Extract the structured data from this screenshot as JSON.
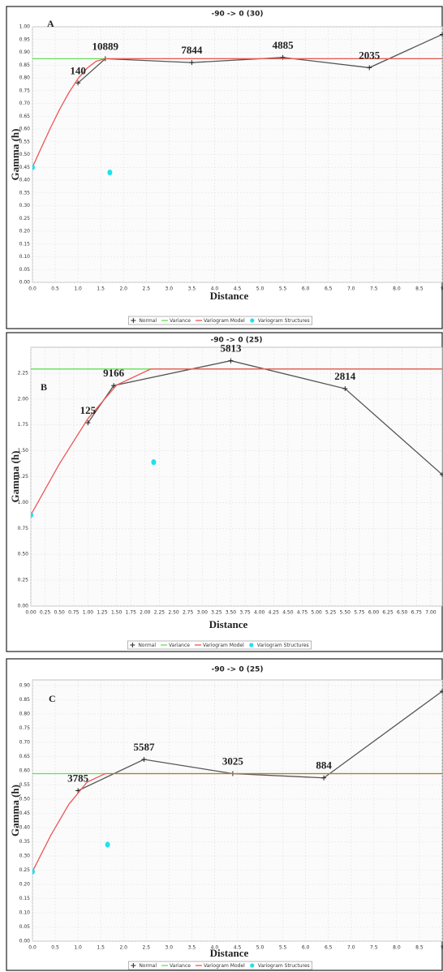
{
  "chart_data": [
    {
      "type": "line",
      "title": "-90 -> 0 (30)",
      "panel": "A",
      "xlabel": "Distance",
      "ylabel": "Gamma (h)",
      "grid": true,
      "xlim": [
        0,
        9
      ],
      "ylim": [
        0,
        1.0
      ],
      "xticks": [
        {
          "value": 0,
          "label": "0.0"
        },
        {
          "value": 0.5,
          "label": "0.5"
        },
        {
          "value": 1,
          "label": "1.0"
        },
        {
          "value": 1.5,
          "label": "1.5"
        },
        {
          "value": 2,
          "label": "2.0"
        },
        {
          "value": 2.5,
          "label": "2.5"
        },
        {
          "value": 3,
          "label": "3.0"
        },
        {
          "value": 3.5,
          "label": "3.5"
        },
        {
          "value": 4,
          "label": "4.0"
        },
        {
          "value": 4.5,
          "label": "4.5"
        },
        {
          "value": 5,
          "label": "5.0"
        },
        {
          "value": 5.5,
          "label": "5.5"
        },
        {
          "value": 6,
          "label": "6.0"
        },
        {
          "value": 6.5,
          "label": "6.5"
        },
        {
          "value": 7,
          "label": "7.0"
        },
        {
          "value": 7.5,
          "label": "7.5"
        },
        {
          "value": 8,
          "label": "8.0"
        },
        {
          "value": 8.5,
          "label": "8.5"
        },
        9
      ],
      "yticks": [
        {
          "value": 0,
          "label": "0.00"
        },
        {
          "value": 0.05,
          "label": "0.05"
        },
        {
          "value": 0.1,
          "label": "0.10"
        },
        {
          "value": 0.15,
          "label": "0.15"
        },
        {
          "value": 0.2,
          "label": "0.20"
        },
        {
          "value": 0.25,
          "label": "0.25"
        },
        {
          "value": 0.3,
          "label": "0.30"
        },
        {
          "value": 0.35,
          "label": "0.35"
        },
        {
          "value": 0.4,
          "label": "0.40"
        },
        {
          "value": 0.45,
          "label": "0.45"
        },
        {
          "value": 0.5,
          "label": "0.50"
        },
        {
          "value": 0.55,
          "label": "0.55"
        },
        {
          "value": 0.6,
          "label": "0.60"
        },
        {
          "value": 0.65,
          "label": "0.65"
        },
        {
          "value": 0.7,
          "label": "0.70"
        },
        {
          "value": 0.75,
          "label": "0.75"
        },
        {
          "value": 0.8,
          "label": "0.80"
        },
        {
          "value": 0.85,
          "label": "0.85"
        },
        {
          "value": 0.9,
          "label": "0.90"
        },
        {
          "value": 0.95,
          "label": "0.95"
        },
        {
          "value": 1.0,
          "label": "1.00"
        }
      ],
      "series": [
        {
          "name": "Normal",
          "color": "#555555",
          "marker": "+",
          "x": [
            1.0,
            1.6,
            3.5,
            5.5,
            7.4,
            9.0
          ],
          "values": [
            0.78,
            0.875,
            0.86,
            0.88,
            0.84,
            0.97
          ],
          "labels": [
            140,
            10889,
            7844,
            4885,
            2035,
            null
          ]
        },
        {
          "name": "Variance",
          "color": "#66dd55",
          "x": [
            0,
            9
          ],
          "values": [
            0.875,
            0.875
          ]
        },
        {
          "name": "Variogram Model",
          "color": "#ee5555",
          "x": [
            0,
            0.2,
            0.4,
            0.6,
            0.8,
            1.0,
            1.2,
            1.4,
            1.6,
            9
          ],
          "values": [
            0.45,
            0.529,
            0.606,
            0.678,
            0.742,
            0.797,
            0.838,
            0.865,
            0.875,
            0.875
          ]
        },
        {
          "name": "Variogram Structures",
          "color": "#22e0ee",
          "marker": "dot",
          "x": [
            0,
            1.7
          ],
          "values": [
            0.45,
            0.43
          ]
        }
      ]
    },
    {
      "type": "line",
      "title": "-90 -> 0 (25)",
      "panel": "B",
      "xlabel": "Distance",
      "ylabel": "Gamma (h)",
      "grid": true,
      "xlim": [
        0,
        7.2
      ],
      "ylim": [
        0,
        2.5
      ],
      "xticks": [
        {
          "value": 0,
          "label": "0.00"
        },
        {
          "value": 0.25,
          "label": "0.25"
        },
        {
          "value": 0.5,
          "label": "0.50"
        },
        {
          "value": 0.75,
          "label": "0.75"
        },
        {
          "value": 1,
          "label": "1.00"
        },
        {
          "value": 1.25,
          "label": "1.25"
        },
        {
          "value": 1.5,
          "label": "1.50"
        },
        {
          "value": 1.75,
          "label": "1.75"
        },
        {
          "value": 2,
          "label": "2.00"
        },
        {
          "value": 2.25,
          "label": "2.25"
        },
        {
          "value": 2.5,
          "label": "2.50"
        },
        {
          "value": 2.75,
          "label": "2.75"
        },
        {
          "value": 3,
          "label": "3.00"
        },
        {
          "value": 3.25,
          "label": "3.25"
        },
        {
          "value": 3.5,
          "label": "3.50"
        },
        {
          "value": 3.75,
          "label": "3.75"
        },
        {
          "value": 4,
          "label": "4.00"
        },
        {
          "value": 4.25,
          "label": "4.25"
        },
        {
          "value": 4.5,
          "label": "4.50"
        },
        {
          "value": 4.75,
          "label": "4.75"
        },
        {
          "value": 5,
          "label": "5.00"
        },
        {
          "value": 5.25,
          "label": "5.25"
        },
        {
          "value": 5.5,
          "label": "5.50"
        },
        {
          "value": 5.75,
          "label": "5.75"
        },
        {
          "value": 6,
          "label": "6.00"
        },
        {
          "value": 6.25,
          "label": "6.25"
        },
        {
          "value": 6.5,
          "label": "6.50"
        },
        {
          "value": 6.75,
          "label": "6.75"
        },
        {
          "value": 7,
          "label": "7.00"
        }
      ],
      "yticks": [
        {
          "value": 0,
          "label": "0.00"
        },
        {
          "value": 0.25,
          "label": "0.25"
        },
        {
          "value": 0.5,
          "label": "0.50"
        },
        {
          "value": 0.75,
          "label": "0.75"
        },
        {
          "value": 1,
          "label": "1.00"
        },
        {
          "value": 1.25,
          "label": "1.25"
        },
        {
          "value": 1.5,
          "label": "1.50"
        },
        {
          "value": 1.75,
          "label": "1.75"
        },
        {
          "value": 2,
          "label": "2.00"
        },
        {
          "value": 2.25,
          "label": "2.25"
        }
      ],
      "series": [
        {
          "name": "Normal",
          "color": "#555555",
          "marker": "+",
          "x": [
            1.0,
            1.45,
            3.5,
            5.5,
            7.2
          ],
          "values": [
            1.77,
            2.13,
            2.37,
            2.1,
            1.27
          ],
          "labels": [
            125,
            9166,
            5813,
            2814,
            null
          ]
        },
        {
          "name": "Variance",
          "color": "#66dd55",
          "x": [
            0,
            7.2
          ],
          "values": [
            2.29,
            2.29
          ]
        },
        {
          "name": "Variogram Model",
          "color": "#ee5555",
          "x": [
            0,
            0.5,
            1.0,
            1.5,
            2.1,
            7.2
          ],
          "values": [
            0.88,
            1.374,
            1.811,
            2.134,
            2.29,
            2.29
          ]
        },
        {
          "name": "Variogram Structures",
          "color": "#22e0ee",
          "marker": "dot",
          "x": [
            0,
            2.15
          ],
          "values": [
            0.88,
            1.39
          ]
        }
      ]
    },
    {
      "type": "line",
      "title": "-90 -> 0 (25)",
      "panel": "C",
      "xlabel": "Distance",
      "ylabel": "Gamma (h)",
      "grid": true,
      "xlim": [
        0,
        9
      ],
      "ylim": [
        0,
        0.92
      ],
      "xticks": [
        {
          "value": 0,
          "label": "0.0"
        },
        {
          "value": 0.5,
          "label": "0.5"
        },
        {
          "value": 1,
          "label": "1.0"
        },
        {
          "value": 1.5,
          "label": "1.5"
        },
        {
          "value": 2,
          "label": "2.0"
        },
        {
          "value": 2.5,
          "label": "2.5"
        },
        {
          "value": 3,
          "label": "3.0"
        },
        {
          "value": 3.5,
          "label": "3.5"
        },
        {
          "value": 4,
          "label": "4.0"
        },
        {
          "value": 4.5,
          "label": "4.5"
        },
        {
          "value": 5,
          "label": "5.0"
        },
        {
          "value": 5.5,
          "label": "5.5"
        },
        {
          "value": 6,
          "label": "6.0"
        },
        {
          "value": 6.5,
          "label": "6.5"
        },
        {
          "value": 7,
          "label": "7.0"
        },
        {
          "value": 7.5,
          "label": "7.5"
        },
        {
          "value": 8,
          "label": "8.0"
        },
        {
          "value": 8.5,
          "label": "8.5"
        },
        9
      ],
      "yticks": [
        {
          "value": 0,
          "label": "0.00"
        },
        {
          "value": 0.05,
          "label": "0.05"
        },
        {
          "value": 0.1,
          "label": "0.10"
        },
        {
          "value": 0.15,
          "label": "0.15"
        },
        {
          "value": 0.2,
          "label": "0.20"
        },
        {
          "value": 0.25,
          "label": "0.25"
        },
        {
          "value": 0.3,
          "label": "0.30"
        },
        {
          "value": 0.35,
          "label": "0.35"
        },
        {
          "value": 0.4,
          "label": "0.40"
        },
        {
          "value": 0.45,
          "label": "0.45"
        },
        {
          "value": 0.5,
          "label": "0.50"
        },
        {
          "value": 0.55,
          "label": "0.55"
        },
        {
          "value": 0.6,
          "label": "0.60"
        },
        {
          "value": 0.65,
          "label": "0.65"
        },
        {
          "value": 0.7,
          "label": "0.70"
        },
        {
          "value": 0.75,
          "label": "0.75"
        },
        {
          "value": 0.8,
          "label": "0.80"
        },
        {
          "value": 0.85,
          "label": "0.85"
        },
        {
          "value": 0.9,
          "label": "0.90"
        }
      ],
      "series": [
        {
          "name": "Normal",
          "color": "#555555",
          "marker": "+",
          "x": [
            1.0,
            2.45,
            4.4,
            6.4,
            9.0
          ],
          "values": [
            0.53,
            0.64,
            0.59,
            0.575,
            0.88
          ],
          "labels": [
            3785,
            5587,
            3025,
            884,
            null
          ]
        },
        {
          "name": "Variance",
          "color": "#66dd55",
          "x": [
            0,
            9
          ],
          "values": [
            0.59,
            0.59
          ]
        },
        {
          "name": "Variogram Model",
          "color": "#ee5555",
          "x": [
            0,
            0.4,
            0.8,
            1.2,
            1.6,
            9
          ],
          "values": [
            0.245,
            0.372,
            0.482,
            0.56,
            0.59,
            0.59
          ]
        },
        {
          "name": "Variogram Structures",
          "color": "#22e0ee",
          "marker": "dot",
          "x": [
            0,
            1.65
          ],
          "values": [
            0.245,
            0.34
          ]
        }
      ]
    }
  ]
}
